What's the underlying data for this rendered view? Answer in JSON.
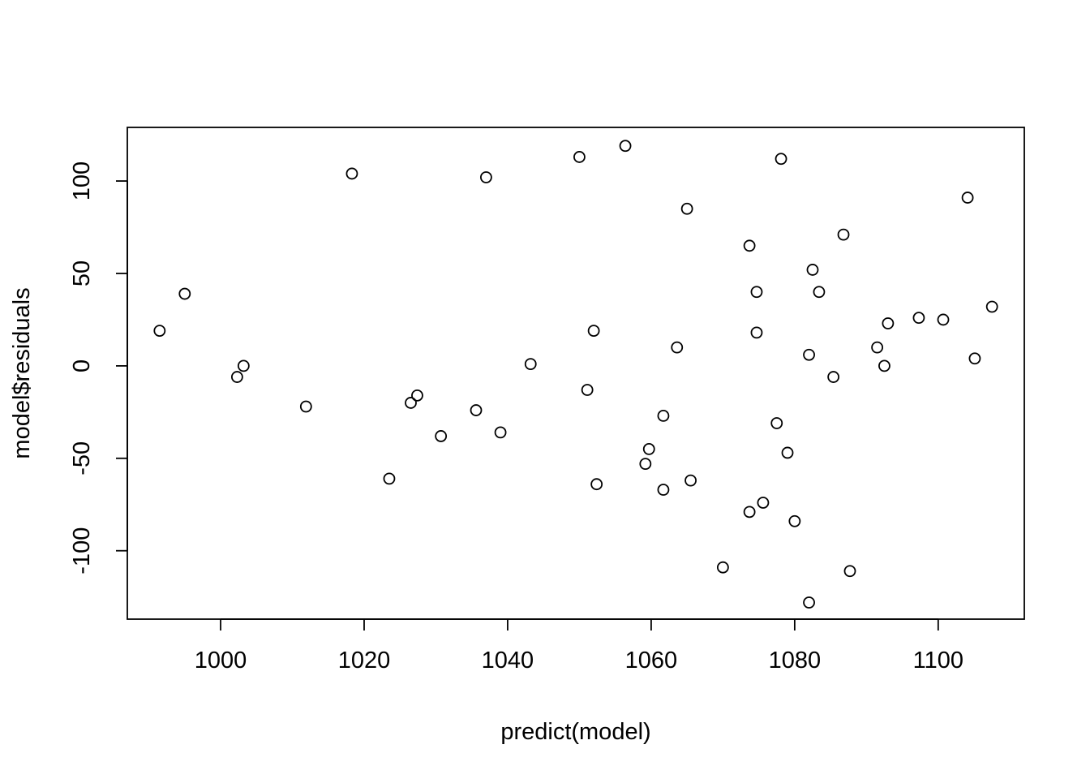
{
  "chart_data": {
    "type": "scatter",
    "title": "",
    "xlabel": "predict(model)",
    "ylabel": "model$residuals",
    "xlim": [
      987,
      1112
    ],
    "ylim": [
      -137,
      129
    ],
    "x_ticks": [
      1000,
      1020,
      1040,
      1060,
      1080,
      1100
    ],
    "y_ticks": [
      -100,
      -50,
      0,
      50,
      100
    ],
    "grid": false,
    "legend": "none",
    "marker": "open-circle",
    "color": "#000000",
    "points": [
      {
        "x": 991.5,
        "y": 19
      },
      {
        "x": 995.0,
        "y": 39
      },
      {
        "x": 1002.3,
        "y": -6
      },
      {
        "x": 1003.2,
        "y": 0
      },
      {
        "x": 1011.9,
        "y": -22
      },
      {
        "x": 1018.3,
        "y": 104
      },
      {
        "x": 1023.5,
        "y": -61
      },
      {
        "x": 1026.5,
        "y": -20
      },
      {
        "x": 1027.4,
        "y": -16
      },
      {
        "x": 1030.7,
        "y": -38
      },
      {
        "x": 1035.6,
        "y": -24
      },
      {
        "x": 1037.0,
        "y": 102
      },
      {
        "x": 1039.0,
        "y": -36
      },
      {
        "x": 1043.2,
        "y": 1
      },
      {
        "x": 1050.0,
        "y": 113
      },
      {
        "x": 1051.1,
        "y": -13
      },
      {
        "x": 1052.0,
        "y": 19
      },
      {
        "x": 1052.4,
        "y": -64
      },
      {
        "x": 1056.4,
        "y": 119
      },
      {
        "x": 1059.2,
        "y": -53
      },
      {
        "x": 1059.7,
        "y": -45
      },
      {
        "x": 1061.7,
        "y": -27
      },
      {
        "x": 1061.7,
        "y": -67
      },
      {
        "x": 1063.6,
        "y": 10
      },
      {
        "x": 1065.0,
        "y": 85
      },
      {
        "x": 1065.5,
        "y": -62
      },
      {
        "x": 1070.0,
        "y": -109
      },
      {
        "x": 1073.7,
        "y": 65
      },
      {
        "x": 1073.7,
        "y": -79
      },
      {
        "x": 1074.7,
        "y": 40
      },
      {
        "x": 1074.7,
        "y": 18
      },
      {
        "x": 1075.6,
        "y": -74
      },
      {
        "x": 1077.5,
        "y": -31
      },
      {
        "x": 1078.1,
        "y": 112
      },
      {
        "x": 1079.0,
        "y": -47
      },
      {
        "x": 1080.0,
        "y": -84
      },
      {
        "x": 1082.0,
        "y": 6
      },
      {
        "x": 1082.0,
        "y": -128
      },
      {
        "x": 1082.5,
        "y": 52
      },
      {
        "x": 1083.4,
        "y": 40
      },
      {
        "x": 1085.4,
        "y": -6
      },
      {
        "x": 1086.8,
        "y": 71
      },
      {
        "x": 1087.7,
        "y": -111
      },
      {
        "x": 1091.5,
        "y": 10
      },
      {
        "x": 1092.5,
        "y": 0
      },
      {
        "x": 1093.0,
        "y": 23
      },
      {
        "x": 1097.3,
        "y": 26
      },
      {
        "x": 1100.7,
        "y": 25
      },
      {
        "x": 1104.1,
        "y": 91
      },
      {
        "x": 1105.1,
        "y": 4
      },
      {
        "x": 1107.5,
        "y": 32
      }
    ]
  }
}
